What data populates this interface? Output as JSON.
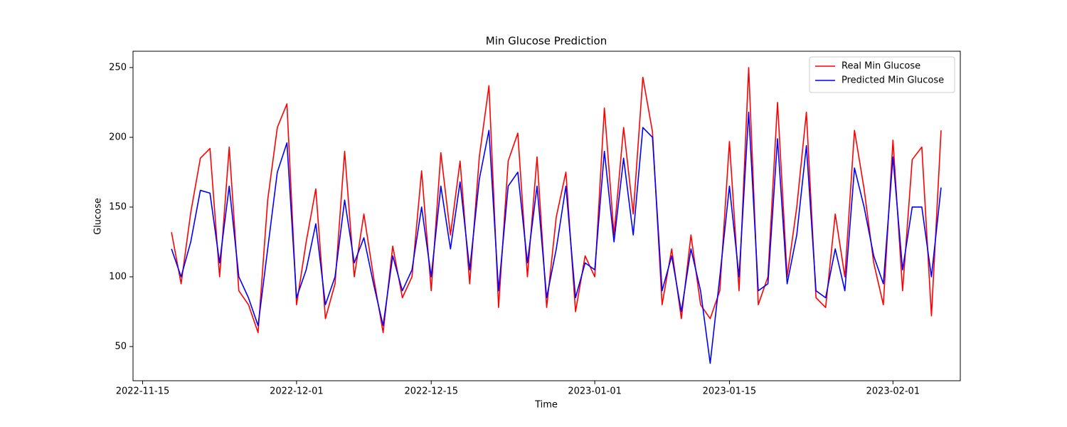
{
  "chart_data": {
    "type": "line",
    "title": "Min Glucose Prediction",
    "xlabel": "Time",
    "ylabel": "Glucose",
    "x": [
      "2022-11-18",
      "2022-11-19",
      "2022-11-20",
      "2022-11-21",
      "2022-11-22",
      "2022-11-23",
      "2022-11-24",
      "2022-11-25",
      "2022-11-26",
      "2022-11-27",
      "2022-11-28",
      "2022-11-29",
      "2022-11-30",
      "2022-12-01",
      "2022-12-02",
      "2022-12-03",
      "2022-12-04",
      "2022-12-05",
      "2022-12-06",
      "2022-12-07",
      "2022-12-08",
      "2022-12-09",
      "2022-12-10",
      "2022-12-11",
      "2022-12-12",
      "2022-12-13",
      "2022-12-14",
      "2022-12-15",
      "2022-12-16",
      "2022-12-17",
      "2022-12-18",
      "2022-12-19",
      "2022-12-20",
      "2022-12-21",
      "2022-12-22",
      "2022-12-23",
      "2022-12-24",
      "2022-12-25",
      "2022-12-26",
      "2022-12-27",
      "2022-12-28",
      "2022-12-29",
      "2022-12-30",
      "2022-12-31",
      "2023-01-01",
      "2023-01-02",
      "2023-01-03",
      "2023-01-04",
      "2023-01-05",
      "2023-01-06",
      "2023-01-07",
      "2023-01-08",
      "2023-01-09",
      "2023-01-10",
      "2023-01-11",
      "2023-01-12",
      "2023-01-13",
      "2023-01-14",
      "2023-01-15",
      "2023-01-16",
      "2023-01-17",
      "2023-01-18",
      "2023-01-19",
      "2023-01-20",
      "2023-01-21",
      "2023-01-22",
      "2023-01-23",
      "2023-01-24",
      "2023-01-25",
      "2023-01-26",
      "2023-01-27",
      "2023-01-28",
      "2023-01-29",
      "2023-01-30",
      "2023-01-31",
      "2023-02-01",
      "2023-02-02",
      "2023-02-03",
      "2023-02-04",
      "2023-02-05",
      "2023-02-06"
    ],
    "series": [
      {
        "name": "Real Min Glucose",
        "color": "#ff0000",
        "values": [
          132,
          95,
          146,
          185,
          192,
          100,
          193,
          90,
          80,
          60,
          155,
          207,
          224,
          80,
          125,
          163,
          70,
          95,
          190,
          100,
          145,
          100,
          60,
          122,
          85,
          100,
          176,
          90,
          189,
          130,
          183,
          95,
          186,
          237,
          78,
          183,
          203,
          100,
          186,
          78,
          143,
          175,
          75,
          115,
          100,
          221,
          130,
          207,
          145,
          243,
          204,
          80,
          120,
          70,
          130,
          80,
          70,
          90,
          197,
          90,
          250,
          80,
          100,
          225,
          100,
          150,
          218,
          85,
          78,
          145,
          100,
          205,
          163,
          110,
          80,
          198,
          90,
          184,
          193,
          72,
          205
        ]
      },
      {
        "name": "Predicted Min Glucose",
        "color": "#0000ff",
        "values": [
          120,
          100,
          125,
          162,
          160,
          110,
          165,
          100,
          85,
          65,
          120,
          175,
          196,
          85,
          105,
          138,
          80,
          100,
          155,
          110,
          128,
          95,
          65,
          115,
          90,
          105,
          150,
          100,
          165,
          120,
          168,
          105,
          170,
          205,
          90,
          165,
          175,
          110,
          165,
          85,
          120,
          165,
          85,
          110,
          105,
          190,
          125,
          185,
          130,
          207,
          200,
          90,
          115,
          75,
          120,
          90,
          38,
          100,
          165,
          100,
          218,
          90,
          95,
          199,
          95,
          130,
          194,
          90,
          85,
          120,
          90,
          178,
          150,
          115,
          95,
          186,
          105,
          150,
          150,
          100,
          164
        ]
      }
    ],
    "xlim": [
      "2022-11-14",
      "2023-02-08"
    ],
    "xticks": [
      "2022-11-15",
      "2022-12-01",
      "2022-12-15",
      "2023-01-01",
      "2023-01-15",
      "2023-02-01"
    ],
    "ylim": [
      25.5,
      261.7
    ],
    "yticks": [
      50,
      100,
      150,
      200,
      250
    ],
    "legend": "upper right"
  }
}
